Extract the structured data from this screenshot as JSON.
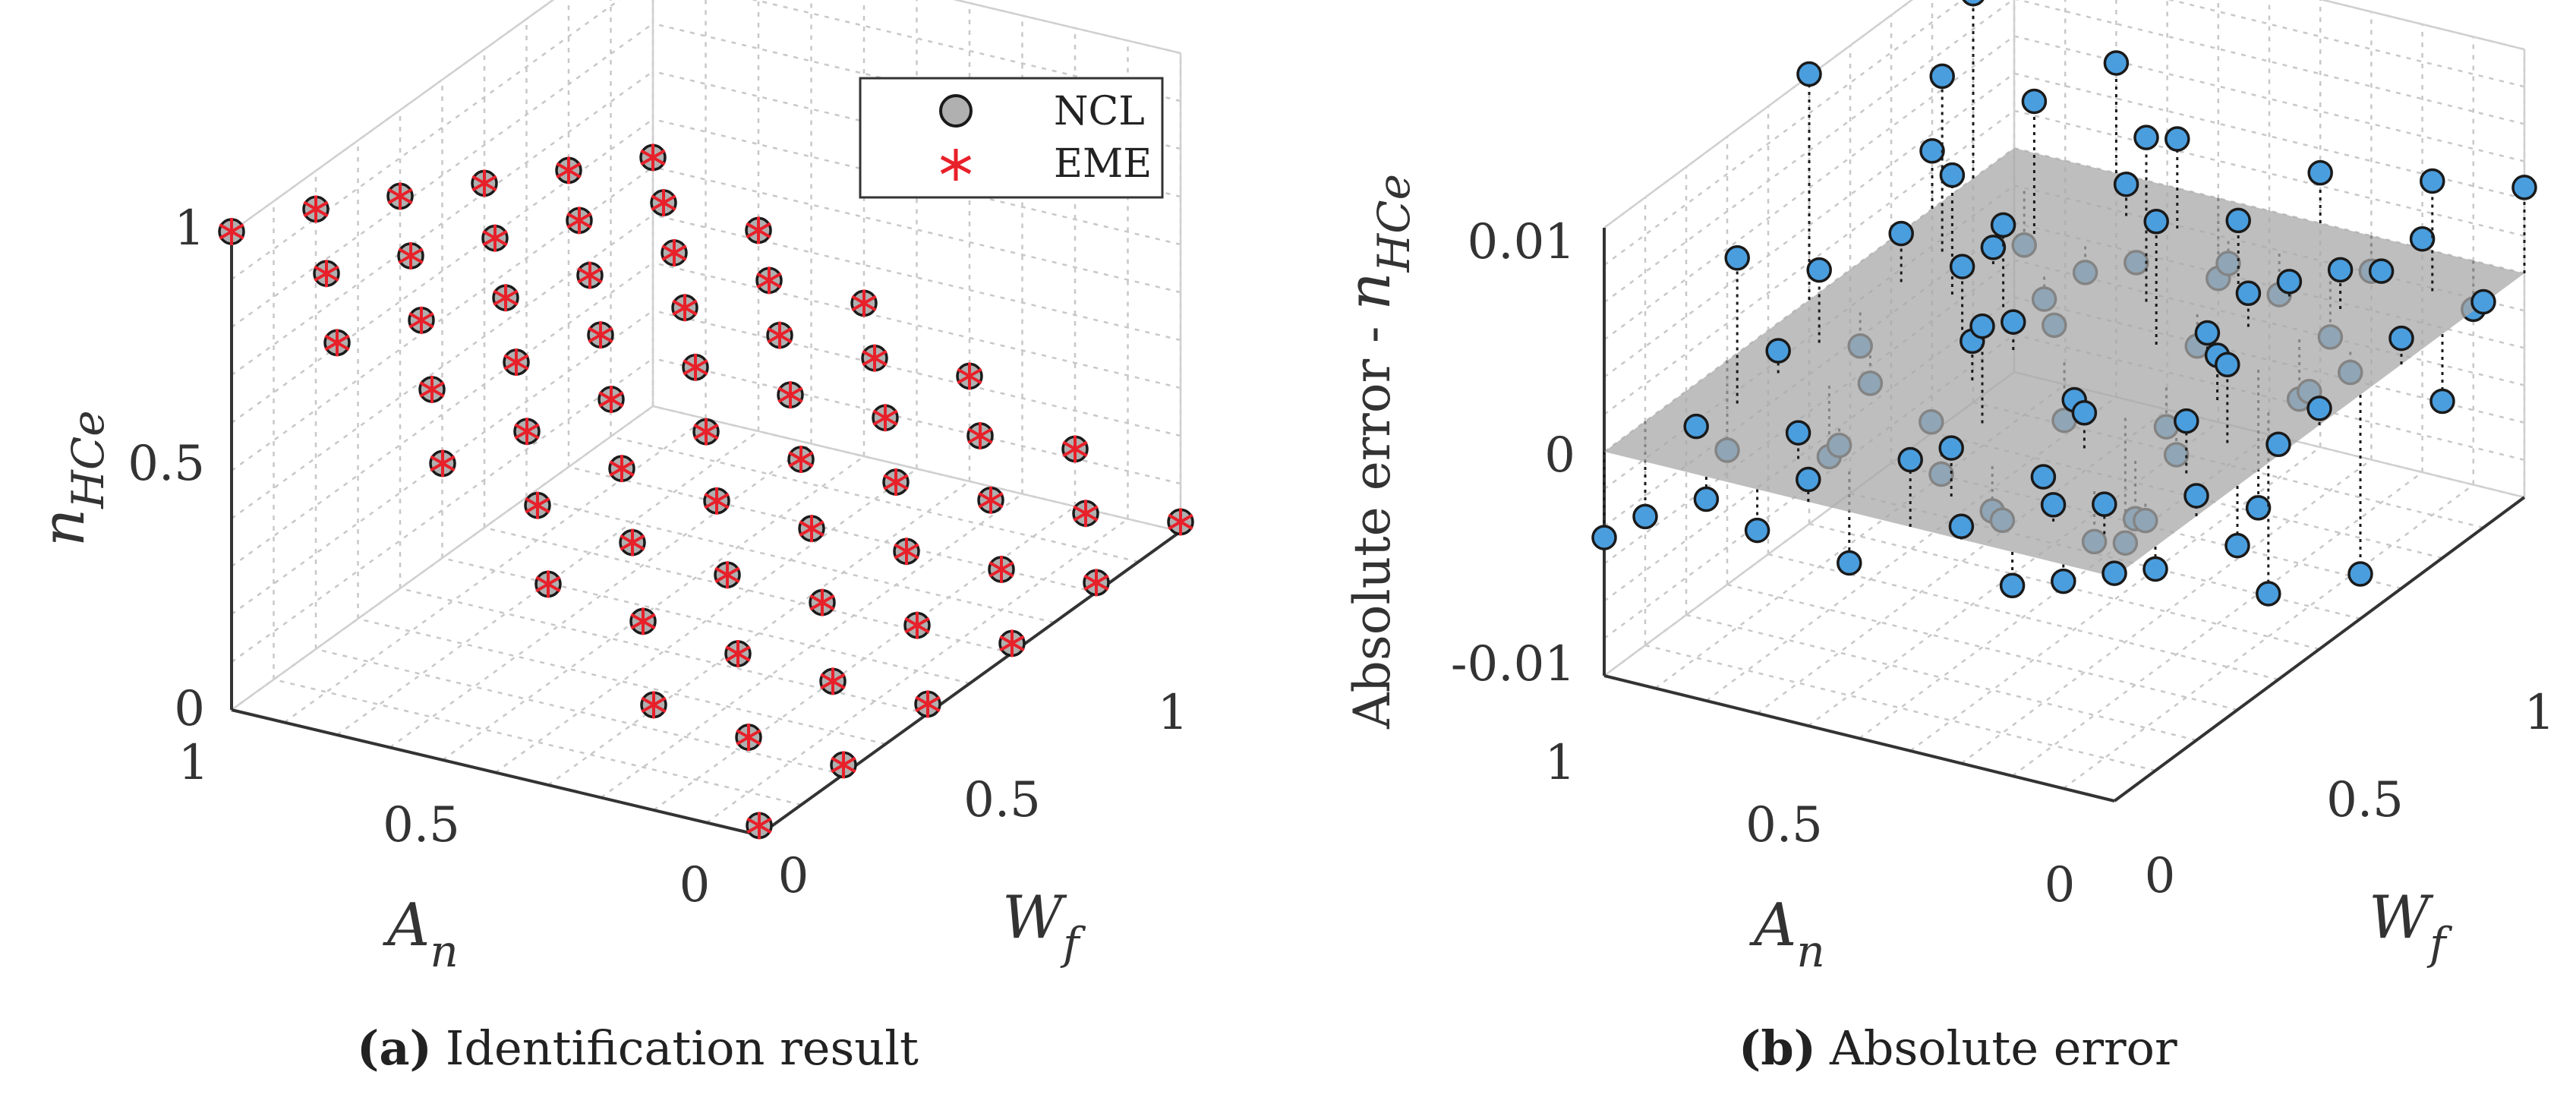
{
  "chart_data": [
    {
      "type": "scatter3d",
      "caption_label": "(a)",
      "caption": "Identification result",
      "xlabel_main": "W",
      "xlabel_sub": "f",
      "ylabel_main": "A",
      "ylabel_sub": "n",
      "zlabel_main": "n",
      "zlabel_sub": "HCe",
      "xlim": [
        0,
        1
      ],
      "ylim": [
        0,
        1
      ],
      "zlim": [
        0,
        1
      ],
      "x_ticks": [
        "0",
        "0.5",
        "1"
      ],
      "y_ticks": [
        "0",
        "0.5",
        "1"
      ],
      "z_ticks": [
        "0",
        "0.5",
        "1"
      ],
      "grid": true,
      "legend_position": "top-right",
      "grid_values": [
        0,
        0.1,
        0.2,
        0.3,
        0.4,
        0.5,
        0.6,
        0.7,
        0.8,
        0.9,
        1.0
      ],
      "series": [
        {
          "name": "NCL",
          "marker": "circle",
          "color": "#b0b0b0"
        },
        {
          "name": "EME",
          "marker": "asterisk",
          "color": "#e8202a"
        }
      ]
    },
    {
      "type": "stem3d",
      "caption_label": "(b)",
      "caption": "Absolute error",
      "xlabel_main": "W",
      "xlabel_sub": "f",
      "ylabel_main": "A",
      "ylabel_sub": "n",
      "zlabel": "Absolute error - ",
      "zlabel_main": "n",
      "zlabel_sub": "HCe",
      "xlim": [
        0,
        1
      ],
      "ylim": [
        0,
        1
      ],
      "zlim": [
        -0.012,
        0.012
      ],
      "x_ticks": [
        "0",
        "0.5",
        "1"
      ],
      "y_ticks": [
        "0",
        "0.5",
        "1"
      ],
      "z_ticks": [
        "-0.01",
        "0",
        "0.01"
      ],
      "grid": true,
      "marker_color": "#4a9ede",
      "plane_color": "#a8a8a8",
      "points": [
        {
          "x": 0.0,
          "y": 1.0,
          "z": -0.0046
        },
        {
          "x": 0.1,
          "y": 1.0,
          "z": -0.0051
        },
        {
          "x": 0.3,
          "y": 1.0,
          "z": -0.0048
        },
        {
          "x": 0.2,
          "y": 0.9,
          "z": 0.0078
        },
        {
          "x": 0.5,
          "y": 1.0,
          "z": 0.0121
        },
        {
          "x": 0.6,
          "y": 0.8,
          "z": 0.0064
        },
        {
          "x": 0.4,
          "y": 0.9,
          "z": 0.0039
        },
        {
          "x": 0.7,
          "y": 0.9,
          "z": 0.0094
        },
        {
          "x": 0.9,
          "y": 1.0,
          "z": 0.0099
        },
        {
          "x": 0.2,
          "y": 0.7,
          "z": -0.0009
        },
        {
          "x": 0.1,
          "y": 0.9,
          "z": 0.0004
        },
        {
          "x": 0.3,
          "y": 0.8,
          "z": -0.0038
        },
        {
          "x": 0.5,
          "y": 0.7,
          "z": 0.0038
        },
        {
          "x": 0.6,
          "y": 0.6,
          "z": -0.0003
        },
        {
          "x": 0.8,
          "y": 0.8,
          "z": 0.0071
        },
        {
          "x": 0.4,
          "y": 0.6,
          "z": 0.0021
        },
        {
          "x": 0.0,
          "y": 0.8,
          "z": -0.0012
        },
        {
          "x": 0.7,
          "y": 0.7,
          "z": -0.0012
        },
        {
          "x": 1.0,
          "y": 0.8,
          "z": 0.0059
        },
        {
          "x": 0.3,
          "y": 0.5,
          "z": 0.0052
        },
        {
          "x": 0.1,
          "y": 0.6,
          "z": -0.0049
        },
        {
          "x": 0.2,
          "y": 0.5,
          "z": -0.0011
        },
        {
          "x": 0.5,
          "y": 0.5,
          "z": -0.0031
        },
        {
          "x": 0.8,
          "y": 0.6,
          "z": -0.0002
        },
        {
          "x": 0.6,
          "y": 0.4,
          "z": 0.0066
        },
        {
          "x": 0.9,
          "y": 0.7,
          "z": 0.0017
        },
        {
          "x": 0.4,
          "y": 0.3,
          "z": -0.0067
        },
        {
          "x": 0.0,
          "y": 0.6,
          "z": 0.0012
        },
        {
          "x": 0.7,
          "y": 0.5,
          "z": 0.0088
        },
        {
          "x": 1.0,
          "y": 0.6,
          "z": -0.0043
        },
        {
          "x": 0.2,
          "y": 0.3,
          "z": 0.0001
        },
        {
          "x": 0.1,
          "y": 0.4,
          "z": 0.0026
        },
        {
          "x": 0.5,
          "y": 0.3,
          "z": -0.0021
        },
        {
          "x": 0.3,
          "y": 0.2,
          "z": -0.0031
        },
        {
          "x": 0.8,
          "y": 0.4,
          "z": 0.0034
        },
        {
          "x": 0.6,
          "y": 0.2,
          "z": -0.0074
        },
        {
          "x": 0.9,
          "y": 0.5,
          "z": -0.0012
        },
        {
          "x": 0.0,
          "y": 0.4,
          "z": 0.0036
        },
        {
          "x": 0.4,
          "y": 0.1,
          "z": 0.0042
        },
        {
          "x": 1.0,
          "y": 0.4,
          "z": 0.0027
        },
        {
          "x": 0.7,
          "y": 0.3,
          "z": 0.0018
        },
        {
          "x": 0.2,
          "y": 0.1,
          "z": -0.0009
        },
        {
          "x": 0.5,
          "y": 0.1,
          "z": -0.0097
        },
        {
          "x": 0.8,
          "y": 0.2,
          "z": 0.0021
        },
        {
          "x": 0.1,
          "y": 0.2,
          "z": 0.0009
        },
        {
          "x": 0.3,
          "y": 0.0,
          "z": -0.0032
        },
        {
          "x": 0.6,
          "y": 0.0,
          "z": -0.0096
        },
        {
          "x": 0.9,
          "y": 0.3,
          "z": -0.0038
        },
        {
          "x": 0.0,
          "y": 0.2,
          "z": -0.0018
        },
        {
          "x": 1.0,
          "y": 0.2,
          "z": 0.0005
        },
        {
          "x": 0.4,
          "y": 0.0,
          "z": 0.0006
        },
        {
          "x": 0.7,
          "y": 0.1,
          "z": -0.0011
        },
        {
          "x": 0.2,
          "y": 0.0,
          "z": 0.0011
        },
        {
          "x": 0.8,
          "y": 0.0,
          "z": -0.0036
        },
        {
          "x": 0.9,
          "y": 0.1,
          "z": 0.0059
        },
        {
          "x": 1.0,
          "y": 0.0,
          "z": 0.0046
        },
        {
          "x": 0.0,
          "y": 0.0,
          "z": 0.0002
        },
        {
          "x": 0.5,
          "y": 0.9,
          "z": -0.0018
        },
        {
          "x": 0.3,
          "y": 0.9,
          "z": 0.0012
        },
        {
          "x": 0.6,
          "y": 0.9,
          "z": 0.0026
        },
        {
          "x": 0.8,
          "y": 1.0,
          "z": 0.0031
        },
        {
          "x": 0.4,
          "y": 0.8,
          "z": -0.0015
        },
        {
          "x": 0.7,
          "y": 0.8,
          "z": 0.0009
        },
        {
          "x": 0.9,
          "y": 0.9,
          "z": -0.0029
        },
        {
          "x": 0.1,
          "y": 0.7,
          "z": 0.0014
        },
        {
          "x": 0.6,
          "y": 0.7,
          "z": 0.0044
        },
        {
          "x": 0.3,
          "y": 0.6,
          "z": -0.0006
        },
        {
          "x": 0.8,
          "y": 0.7,
          "z": -0.0014
        },
        {
          "x": 0.0,
          "y": 0.7,
          "z": -0.0022
        },
        {
          "x": 0.5,
          "y": 0.6,
          "z": 0.0015
        },
        {
          "x": 0.9,
          "y": 0.6,
          "z": 0.0048
        },
        {
          "x": 0.2,
          "y": 0.4,
          "z": -0.0024
        },
        {
          "x": 0.7,
          "y": 0.4,
          "z": -0.0017
        },
        {
          "x": 0.4,
          "y": 0.4,
          "z": 0.0003
        },
        {
          "x": 0.1,
          "y": 0.3,
          "z": -0.0006
        },
        {
          "x": 0.6,
          "y": 0.3,
          "z": 0.0013
        },
        {
          "x": 0.9,
          "y": 0.4,
          "z": -0.0022
        },
        {
          "x": 0.3,
          "y": 0.3,
          "z": 0.0019
        },
        {
          "x": 0.8,
          "y": 0.3,
          "z": 0.0008
        },
        {
          "x": 0.0,
          "y": 0.3,
          "z": 0.0007
        },
        {
          "x": 0.5,
          "y": 0.2,
          "z": 0.0024
        },
        {
          "x": 0.2,
          "y": 0.2,
          "z": -0.0027
        },
        {
          "x": 0.7,
          "y": 0.2,
          "z": -0.0032
        },
        {
          "x": 0.4,
          "y": 0.2,
          "z": -0.0013
        },
        {
          "x": 1.0,
          "y": 0.3,
          "z": -0.0019
        },
        {
          "x": 0.1,
          "y": 0.1,
          "z": 0.0016
        },
        {
          "x": 0.6,
          "y": 0.1,
          "z": -0.0005
        },
        {
          "x": 0.3,
          "y": 0.1,
          "z": 0.0028
        },
        {
          "x": 0.9,
          "y": 0.2,
          "z": 0.0004
        },
        {
          "x": 0.0,
          "y": 0.1,
          "z": -0.0009
        },
        {
          "x": 0.5,
          "y": 0.0,
          "z": 0.0009
        },
        {
          "x": 1.0,
          "y": 0.1,
          "z": -0.0026
        },
        {
          "x": 0.1,
          "y": 0.0,
          "z": -0.0012
        },
        {
          "x": 0.7,
          "y": 0.0,
          "z": 0.0014
        },
        {
          "x": 0.9,
          "y": 0.0,
          "z": 0.0001
        }
      ]
    }
  ]
}
